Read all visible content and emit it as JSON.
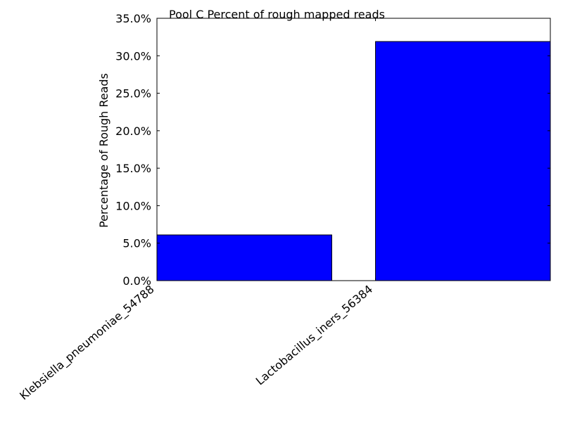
{
  "chart_data": {
    "type": "bar",
    "title": "Pool C Percent of rough mapped reads",
    "xlabel": "",
    "ylabel": "Percentage of Rough Reads",
    "categories": [
      "Klebsiella_pneumoniae_54788",
      "Lactobacillus_iners_56384"
    ],
    "values": [
      6.1,
      31.9
    ],
    "ylim": [
      0,
      35
    ],
    "yticks": [
      "0.0%",
      "5.0%",
      "10.0%",
      "15.0%",
      "20.0%",
      "25.0%",
      "30.0%",
      "35.0%"
    ],
    "bar_color": "#0000ff",
    "grid": false
  }
}
